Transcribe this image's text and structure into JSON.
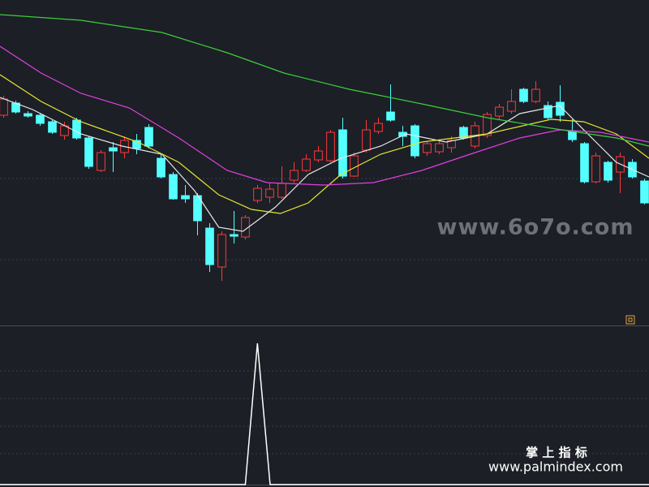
{
  "chart_data": [
    {
      "type": "candlestick",
      "up_color": "#ff3a3a",
      "down_color": "#54ffff",
      "xlim": [
        -0.3,
        53.4
      ],
      "ylim": [
        0,
        100
      ],
      "open": [
        64.5,
        68.25,
        65,
        64.5,
        62.5,
        58.25,
        63,
        57.5,
        47.5,
        54.5,
        53,
        56.75,
        60.75,
        51.25,
        46.25,
        39.75,
        39.75,
        29.75,
        17.75,
        27.75,
        27,
        38.25,
        39.25,
        39.25,
        44.5,
        47.5,
        50.75,
        50.5,
        60,
        45.75,
        53.75,
        59.5,
        65.5,
        59.25,
        61.25,
        53,
        53.25,
        54.5,
        60.75,
        55,
        58.25,
        64.25,
        65.75,
        72.5,
        68.75,
        67.5,
        68.5,
        59.5,
        55.75,
        44,
        50,
        47,
        50,
        44.25
      ],
      "high": [
        70.5,
        69,
        65.75,
        65,
        63,
        62.5,
        63.75,
        58,
        53.75,
        56.25,
        58,
        58.75,
        61.75,
        52.5,
        47,
        43,
        40.5,
        31.25,
        28.75,
        35,
        33.75,
        43,
        43.75,
        48.75,
        50,
        52.5,
        55,
        60,
        63.75,
        53,
        63,
        63.75,
        74,
        61.25,
        61.75,
        56.25,
        57,
        58,
        61.25,
        62.5,
        65.5,
        68,
        72.5,
        73,
        75,
        68.75,
        73.75,
        63.25,
        56.25,
        53,
        50.5,
        53,
        51,
        45
      ],
      "low": [
        63.75,
        65,
        63.75,
        61.25,
        58.75,
        57,
        57,
        48,
        47,
        47,
        51.25,
        52.5,
        54.25,
        45,
        38.5,
        37.5,
        27.5,
        16.25,
        13.5,
        25,
        26.25,
        37.5,
        37.5,
        38.75,
        43.75,
        47,
        50,
        50,
        45,
        45.5,
        53,
        58.75,
        62.5,
        55,
        51.25,
        52,
        52.5,
        53,
        57,
        54.25,
        57.5,
        63,
        65,
        68.25,
        68.25,
        63.25,
        62.5,
        56.25,
        43.5,
        43.5,
        43.75,
        40.5,
        45,
        37
      ],
      "close": [
        69.5,
        65.5,
        64.25,
        62,
        59.25,
        61.25,
        57.5,
        48.75,
        53,
        53.5,
        56.75,
        54.25,
        55,
        45.5,
        38.75,
        38.75,
        32,
        18.5,
        27.75,
        27.25,
        33,
        42,
        41.75,
        43.5,
        47.5,
        51,
        53.5,
        59.25,
        45.75,
        52,
        60,
        62,
        63,
        58,
        52,
        55.75,
        55.75,
        56.75,
        57.5,
        61.25,
        64.75,
        67,
        68.75,
        68.75,
        72.5,
        63.75,
        64.5,
        57,
        44,
        52,
        44.5,
        51.75,
        45.5,
        37.5
      ],
      "overlays": [
        {
          "color": "#e8e8e8",
          "x": [
            -0.3,
            2.4,
            6.4,
            9.8,
            13.1,
            15.8,
            17.8,
            19.8,
            22.5,
            25.2,
            27.9,
            31.2,
            33.3,
            36.6,
            40,
            42.7,
            46,
            48,
            50.7,
            53.4
          ],
          "values": [
            70,
            66.25,
            58.75,
            55,
            52.5,
            41.25,
            30,
            28.75,
            36.25,
            46.25,
            51.25,
            55,
            58.75,
            56.25,
            58.75,
            65,
            67.5,
            60,
            50,
            45.5
          ]
        },
        {
          "color": "#e6e62e",
          "x": [
            -0.3,
            3.1,
            6.4,
            11.1,
            14.5,
            17.8,
            20.5,
            22.9,
            25.2,
            27.9,
            31.2,
            34.6,
            40,
            45.3,
            48,
            50.7,
            53.4
          ],
          "values": [
            77,
            68.75,
            62.5,
            56.25,
            50,
            40,
            35.5,
            34.25,
            37.5,
            46.25,
            52.5,
            56.25,
            58.75,
            63.25,
            62.5,
            58.75,
            51.25
          ]
        },
        {
          "color": "#e040e0",
          "x": [
            -0.3,
            3.1,
            6.4,
            10.4,
            14.5,
            18.5,
            21.8,
            26.5,
            30.6,
            34.6,
            38.6,
            42.7,
            46,
            49.4,
            53.4
          ],
          "values": [
            85.75,
            77.5,
            71.25,
            66.75,
            57.5,
            47.5,
            43.75,
            43,
            43.75,
            47.5,
            52.5,
            57.5,
            60,
            59.25,
            56.25
          ]
        },
        {
          "color": "#3ccf3c",
          "x": [
            -0.3,
            6.4,
            13.1,
            18.5,
            23.2,
            28.6,
            34.6,
            40,
            45.3,
            50.7,
            53.4
          ],
          "values": [
            95.5,
            93.75,
            90,
            83.75,
            77.5,
            72.5,
            68,
            63.75,
            60.5,
            57.5,
            55
          ]
        }
      ]
    },
    {
      "type": "line",
      "color": "#ffffff",
      "xlim": [
        -0.3,
        53.4
      ],
      "ylim": [
        0,
        100
      ],
      "x": [
        -0.3,
        20.0,
        21.0,
        22.05,
        53.4
      ],
      "values": [
        0,
        0,
        100,
        0,
        0
      ]
    }
  ],
  "watermark": "www.6o7o.com",
  "footer": {
    "title": "掌 上 指 标",
    "url": "www.palmindex.com"
  }
}
